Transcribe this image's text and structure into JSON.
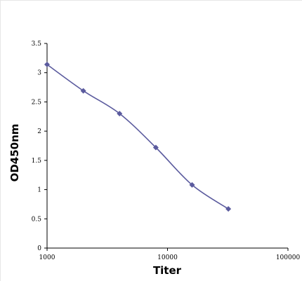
{
  "chart_data": {
    "type": "line",
    "title": "",
    "xlabel": "Titer",
    "ylabel": "OD450nm",
    "x_scale": "log",
    "xlim": [
      1000,
      100000
    ],
    "ylim": [
      0,
      3.5
    ],
    "x_tick_labels": [
      "1000",
      "10000",
      "100000"
    ],
    "y_tick_labels": [
      "0",
      "0.5",
      "1",
      "1.5",
      "2",
      "2.5",
      "3",
      "3.5"
    ],
    "grid": false,
    "legend": "none",
    "marker": "diamond",
    "series": [
      {
        "x": [
          1000,
          2000,
          4000,
          8000,
          16000,
          32000
        ],
        "y": [
          3.14,
          2.69,
          2.3,
          1.72,
          1.08,
          0.67
        ]
      }
    ],
    "colors": {
      "line": "#5b5b9e",
      "marker": "#5b5b9e",
      "axis": "#000000"
    }
  }
}
